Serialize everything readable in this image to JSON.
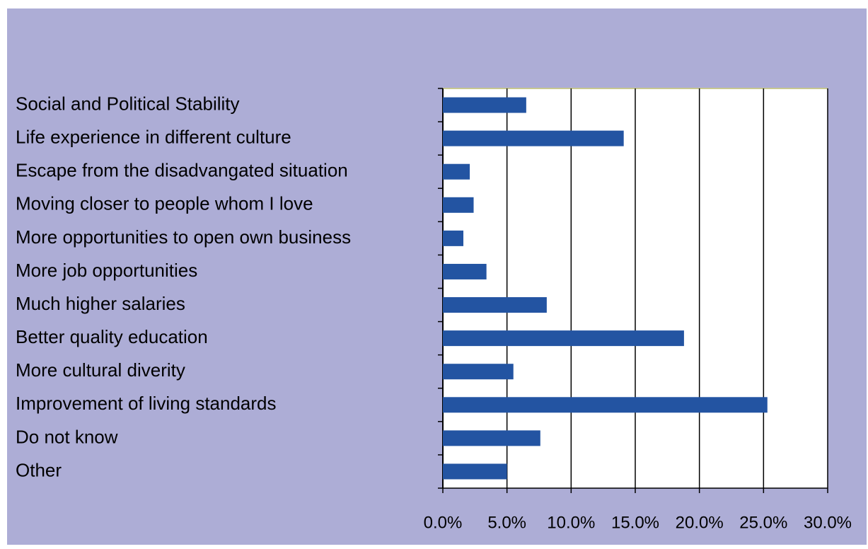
{
  "chart_data": {
    "type": "barh",
    "categories": [
      "Social and Political Stability",
      "Life experience in different culture",
      "Escape from the disadvangated situation",
      "Moving closer to people whom I love",
      "More opportunities to open own business",
      "More job opportunities",
      "Much higher salaries",
      "Better quality education",
      "More cultural diverity",
      "Improvement of living standards",
      "Do not know",
      "Other"
    ],
    "values": [
      6.5,
      14.1,
      2.1,
      2.4,
      1.6,
      3.4,
      8.1,
      18.8,
      5.5,
      25.3,
      7.6,
      5.0
    ],
    "color": "#2354a2",
    "xlim": [
      0,
      30
    ],
    "xticks": [
      {
        "value": 0,
        "label": "0.0%"
      },
      {
        "value": 5,
        "label": "5.0%"
      },
      {
        "value": 10,
        "label": "10.0%"
      },
      {
        "value": 15,
        "label": "15.0%"
      },
      {
        "value": 20,
        "label": "20.0%"
      },
      {
        "value": 25,
        "label": "25.0%"
      },
      {
        "value": 30,
        "label": "30.0%"
      }
    ],
    "grid": true
  }
}
